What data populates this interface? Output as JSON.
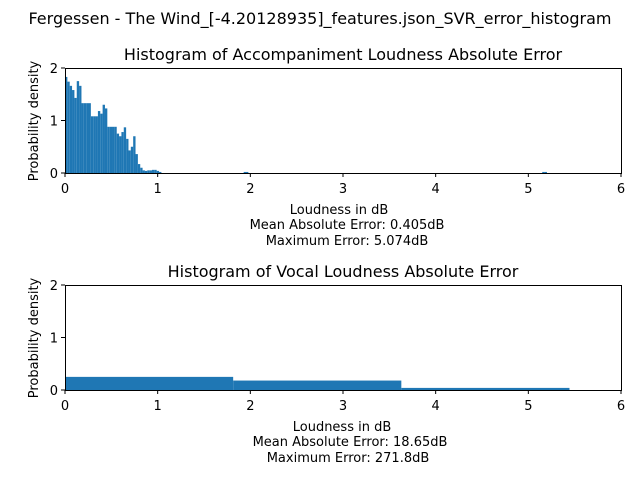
{
  "figure": {
    "suptitle": "Fergessen - The Wind_[-4.20128935]_features.json_SVR_error_histogram"
  },
  "chart_data": [
    {
      "type": "bar",
      "title": "Histogram of Accompaniment Loudness Absolute Error",
      "xlabel": "Loudness in dB",
      "ylabel": "Probability density",
      "stats": [
        "Mean Absolute Error: 0.405dB",
        "Maximum Error: 5.074dB"
      ],
      "xlim": [
        0,
        6
      ],
      "ylim": [
        0,
        2
      ],
      "xticks": [
        "0",
        "1",
        "2",
        "3",
        "4",
        "5",
        "6"
      ],
      "yticks": [
        "0",
        "1",
        "2"
      ],
      "grid": false,
      "color": "#1f77b4",
      "bin_start": 0,
      "bin_width": 0.02537,
      "values": [
        1.83,
        1.74,
        1.66,
        1.58,
        1.43,
        1.75,
        1.66,
        1.33,
        1.33,
        1.33,
        1.33,
        1.08,
        1.08,
        1.08,
        1.18,
        1.13,
        1.3,
        1.23,
        0.88,
        0.88,
        0.88,
        0.88,
        0.75,
        0.7,
        0.78,
        0.87,
        0.65,
        0.43,
        0.5,
        0.7,
        0.36,
        0.17,
        0.1,
        0.05,
        0.04,
        0.05,
        0.05,
        0.06,
        0.06,
        0.04,
        0.02,
        0,
        0,
        0,
        0,
        0,
        0,
        0,
        0,
        0,
        0,
        0,
        0,
        0,
        0,
        0,
        0,
        0,
        0,
        0,
        0,
        0,
        0,
        0,
        0,
        0,
        0,
        0,
        0,
        0,
        0,
        0,
        0,
        0,
        0,
        0,
        0.02,
        0.02,
        0,
        0,
        0,
        0,
        0,
        0,
        0,
        0,
        0,
        0,
        0,
        0,
        0,
        0,
        0,
        0,
        0,
        0,
        0,
        0,
        0,
        0,
        0,
        0,
        0,
        0,
        0,
        0,
        0,
        0,
        0,
        0,
        0,
        0,
        0,
        0,
        0,
        0,
        0,
        0,
        0,
        0,
        0,
        0,
        0,
        0,
        0,
        0,
        0,
        0,
        0,
        0,
        0,
        0,
        0,
        0,
        0,
        0,
        0,
        0,
        0,
        0,
        0,
        0,
        0,
        0,
        0,
        0,
        0,
        0,
        0,
        0,
        0,
        0,
        0,
        0,
        0,
        0,
        0,
        0,
        0,
        0,
        0,
        0,
        0,
        0,
        0,
        0,
        0,
        0,
        0,
        0,
        0,
        0,
        0,
        0,
        0,
        0,
        0,
        0,
        0,
        0,
        0,
        0,
        0,
        0,
        0,
        0,
        0,
        0,
        0,
        0,
        0,
        0,
        0,
        0,
        0,
        0,
        0,
        0,
        0,
        0,
        0,
        0,
        0,
        0.02,
        0.02
      ]
    },
    {
      "type": "bar",
      "title": "Histogram of Vocal Loudness Absolute Error",
      "xlabel": "Loudness in dB",
      "ylabel": "Probability density",
      "stats": [
        "Mean Absolute Error: 18.65dB",
        "Maximum Error: 271.8dB"
      ],
      "xlim": [
        0,
        6
      ],
      "ylim": [
        0,
        2
      ],
      "xticks": [
        "0",
        "1",
        "2",
        "3",
        "4",
        "5",
        "6"
      ],
      "yticks": [
        "0",
        "1",
        "2"
      ],
      "grid": false,
      "color": "#1f77b4",
      "bin_start": 0,
      "bin_width": 1.8147,
      "values": [
        0.25,
        0.18,
        0.04
      ]
    }
  ]
}
